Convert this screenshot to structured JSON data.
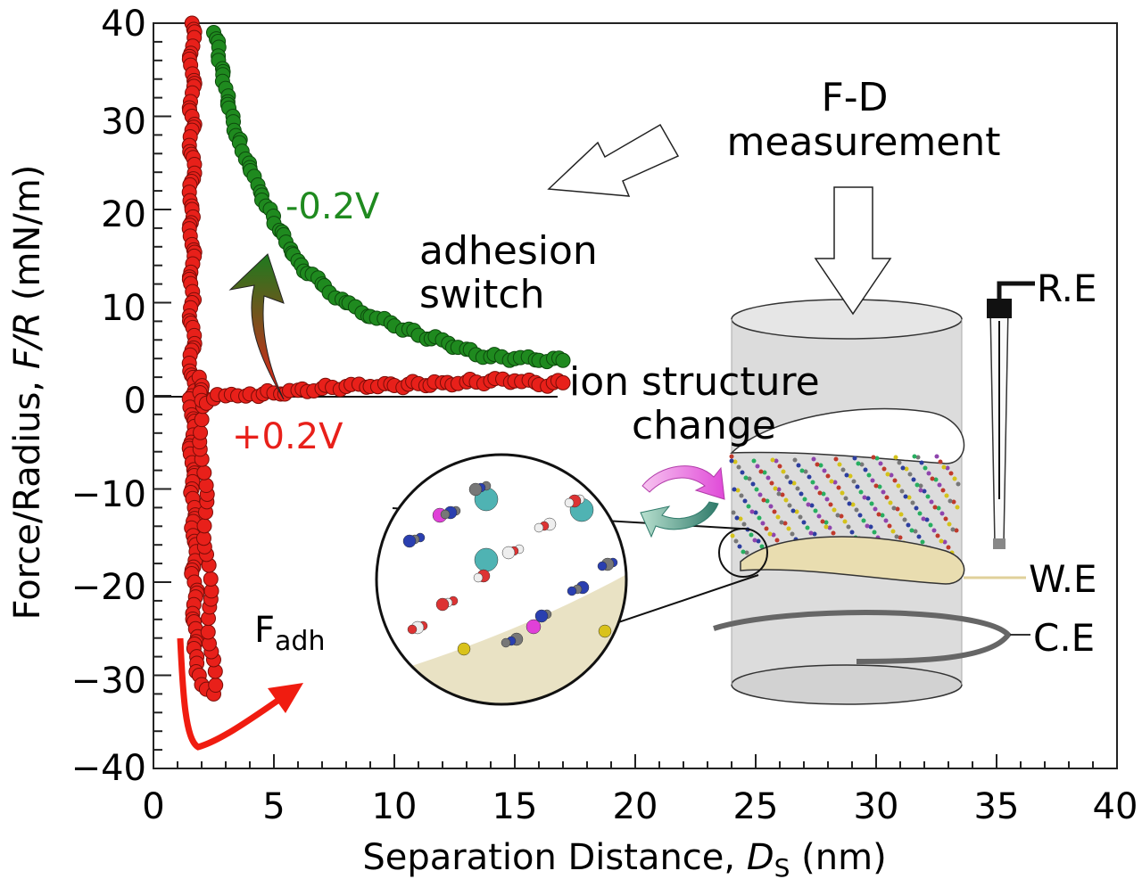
{
  "chart_data": {
    "type": "scatter",
    "title": "",
    "xlabel": "Separation Distance, D_S (nm)",
    "xlabel_parts": {
      "pre": "Separation Distance, ",
      "sym": "D",
      "sub": "S",
      "post": " (nm)"
    },
    "ylabel": "Force/Radius, F/R (mN/m)",
    "ylabel_parts": {
      "pre": "Force/Radius, ",
      "sym": "F/R",
      "post": " (mN/m)"
    },
    "xlim": [
      0,
      40
    ],
    "ylim": [
      -40,
      40
    ],
    "xticks": [
      "0",
      "5",
      "10",
      "15",
      "20",
      "25",
      "30",
      "35",
      "40"
    ],
    "yticks": [
      "40",
      "30",
      "20",
      "10",
      "0",
      "−10",
      "−20",
      "−30",
      "−40"
    ],
    "series": [
      {
        "name": "-0.2V",
        "color": "#1f8a1f",
        "x": [
          2.5,
          2.7,
          3.0,
          3.3,
          3.6,
          4.0,
          4.5,
          5.0,
          5.5,
          6.0,
          7.0,
          8.0,
          9.0,
          10.0,
          11.0,
          12.0,
          13.0,
          14.0,
          15.0,
          16.0,
          17.0
        ],
        "y": [
          39,
          36,
          33,
          30,
          27.5,
          24.5,
          21,
          18.5,
          16.5,
          14.5,
          12,
          10,
          8.5,
          7.5,
          6.5,
          6,
          5,
          4.2,
          4,
          3.8,
          3.8
        ]
      },
      {
        "name": "+0.2V",
        "color": "#e8201a",
        "x": [
          1.6,
          1.6,
          1.6,
          1.6,
          1.6,
          1.6,
          1.65,
          1.7,
          1.75,
          1.8,
          1.9,
          2.0,
          2.2,
          2.5,
          1.9,
          2.0,
          2.2,
          2.5,
          3.0,
          3.5,
          4.0,
          5.0,
          6.0,
          7.0,
          8.0,
          9.0,
          10.0,
          11.0,
          12.0,
          13.0,
          14.0,
          15.0,
          16.0,
          17.0
        ],
        "y": [
          40,
          30,
          20,
          10,
          0,
          -10,
          -15,
          -20,
          -25,
          -28,
          -30,
          -31,
          -31.5,
          -32,
          2,
          -0.5,
          -0.8,
          -0.3,
          0,
          0,
          0.2,
          0.3,
          0.6,
          0.8,
          1.0,
          1.0,
          1.1,
          1.3,
          1.4,
          1.5,
          1.6,
          1.6,
          1.2,
          1.4
        ]
      }
    ],
    "annotations": {
      "neg_label": "-0.2V",
      "pos_label": "+0.2V",
      "fadh_main": "F",
      "fadh_sub": "adh",
      "adhesion_1": "adhesion",
      "adhesion_2": "switch",
      "fd_1": "F-D",
      "fd_2": "measurement",
      "ion_1": "ion structure",
      "ion_2": "change",
      "re": "R.E",
      "we": "W.E",
      "ce": "C.E"
    },
    "grid": false,
    "legend": "none"
  }
}
